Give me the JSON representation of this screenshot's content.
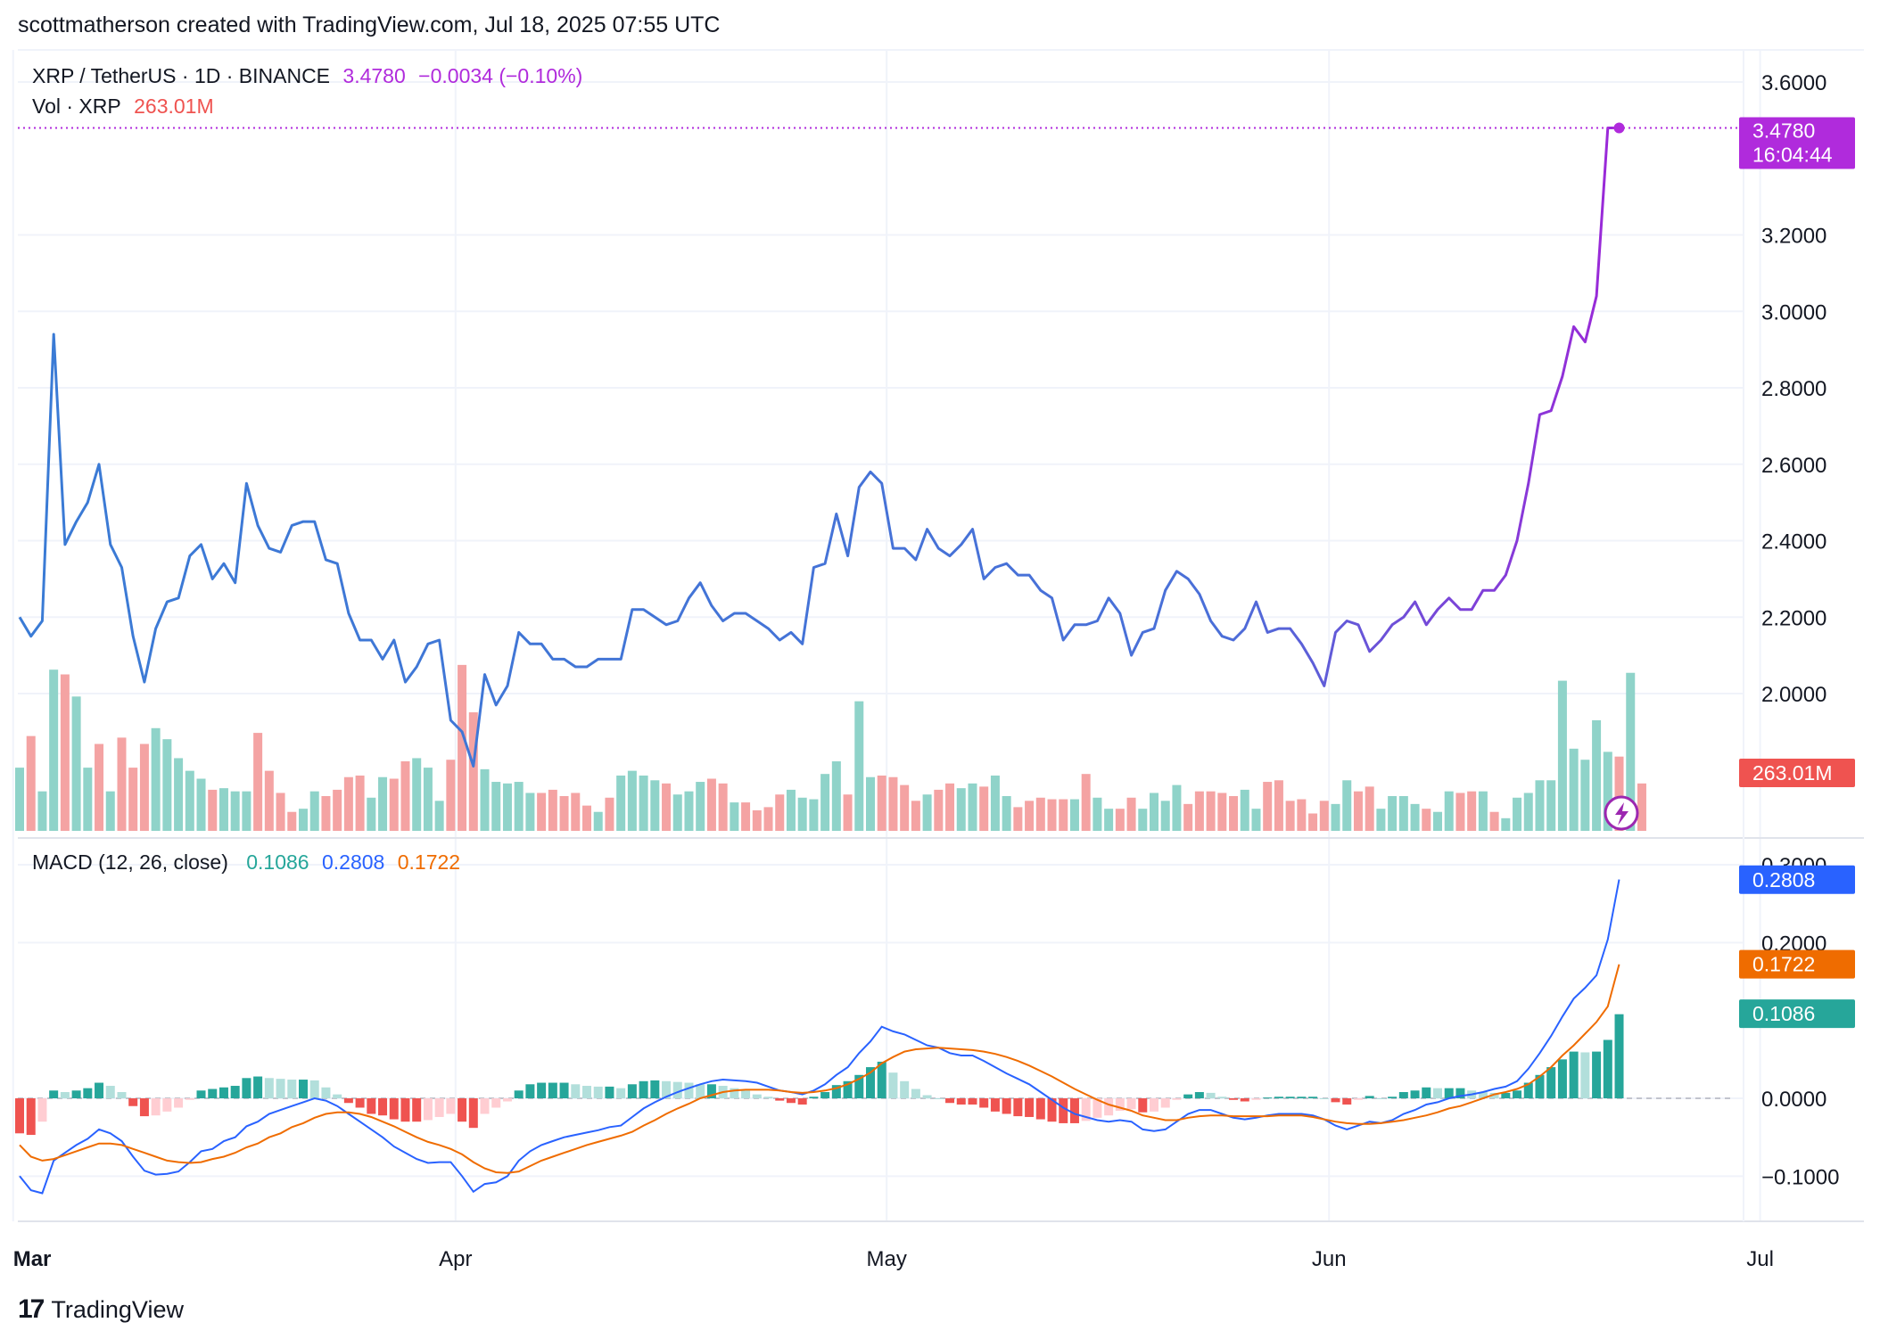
{
  "header": {
    "attribution": "scottmatherson created with TradingView.com, Jul 18, 2025 07:55 UTC"
  },
  "legend": {
    "symbol": "XRP / TetherUS · 1D · BINANCE",
    "last": "3.4780",
    "change": "−0.0034 (−0.10%)",
    "vol_label": "Vol · XRP",
    "vol_value": "263.01M",
    "macd_label": "MACD (12, 26, close)",
    "macd_hist": "0.1086",
    "macd_line": "0.2808",
    "macd_signal": "0.1722"
  },
  "price_tag": {
    "price": "3.4780",
    "countdown": "16:04:44"
  },
  "volume_tag": "263.01M",
  "macd_tags": {
    "macd": "0.2808",
    "signal": "0.1722",
    "hist": "0.1086"
  },
  "footer": {
    "brand": "TradingView"
  },
  "colors": {
    "price_line": "#3a7bd5",
    "price_line_recent": "#9c27d8",
    "last_price": "#b02bdc",
    "up_volume": "#8fd3c9",
    "down_volume": "#f4a3a3",
    "macd_line": "#2962ff",
    "signal_line": "#ef6c00",
    "hist_up_strong": "#26a69a",
    "hist_up_weak": "#b2dfdb",
    "hist_down_strong": "#ef5350",
    "hist_down_weak": "#ffcdd2"
  },
  "chart_data": [
    {
      "type": "line",
      "title": "XRP / TetherUS · 1D · BINANCE",
      "x_tick_labels": [
        "Mar",
        "Apr",
        "May",
        "Jun",
        "Jul"
      ],
      "y_tick_labels": [
        "3.6000",
        "3.2000",
        "3.0000",
        "2.8000",
        "2.6000",
        "2.4000",
        "2.2000",
        "2.0000"
      ],
      "ylim": [
        1.65,
        3.7
      ],
      "grid": true,
      "series": [
        {
          "name": "XRP / TetherUS",
          "values": [
            2.2,
            2.15,
            2.19,
            2.94,
            2.39,
            2.45,
            2.5,
            2.6,
            2.39,
            2.33,
            2.15,
            2.03,
            2.17,
            2.24,
            2.25,
            2.36,
            2.39,
            2.3,
            2.34,
            2.29,
            2.55,
            2.44,
            2.38,
            2.37,
            2.44,
            2.45,
            2.45,
            2.35,
            2.34,
            2.21,
            2.14,
            2.14,
            2.09,
            2.14,
            2.03,
            2.07,
            2.13,
            2.14,
            1.93,
            1.9,
            1.81,
            2.05,
            1.97,
            2.02,
            2.16,
            2.13,
            2.13,
            2.09,
            2.09,
            2.07,
            2.07,
            2.09,
            2.09,
            2.09,
            2.22,
            2.22,
            2.2,
            2.18,
            2.19,
            2.25,
            2.29,
            2.23,
            2.19,
            2.21,
            2.21,
            2.19,
            2.17,
            2.14,
            2.16,
            2.13,
            2.33,
            2.34,
            2.47,
            2.36,
            2.54,
            2.58,
            2.55,
            2.38,
            2.38,
            2.35,
            2.43,
            2.38,
            2.36,
            2.39,
            2.43,
            2.3,
            2.33,
            2.34,
            2.31,
            2.31,
            2.27,
            2.25,
            2.14,
            2.18,
            2.18,
            2.19,
            2.25,
            2.21,
            2.1,
            2.16,
            2.17,
            2.27,
            2.32,
            2.3,
            2.26,
            2.19,
            2.15,
            2.14,
            2.17,
            2.24,
            2.16,
            2.17,
            2.17,
            2.13,
            2.08,
            2.02,
            2.16,
            2.19,
            2.18,
            2.11,
            2.14,
            2.18,
            2.2,
            2.24,
            2.18,
            2.22,
            2.25,
            2.22,
            2.22,
            2.27,
            2.27,
            2.31,
            2.4,
            2.55,
            2.73,
            2.74,
            2.83,
            2.96,
            2.92,
            3.04,
            3.48,
            3.48
          ]
        }
      ]
    },
    {
      "type": "bar",
      "title": "Vol · XRP",
      "series": [
        {
          "name": "Vol · XRP",
          "values": [
            400,
            600,
            250,
            1020,
            990,
            850,
            400,
            550,
            250,
            590,
            400,
            550,
            650,
            580,
            460,
            380,
            330,
            260,
            270,
            250,
            250,
            620,
            380,
            240,
            120,
            140,
            250,
            220,
            260,
            340,
            350,
            210,
            340,
            330,
            440,
            460,
            400,
            190,
            450,
            1050,
            750,
            390,
            310,
            300,
            310,
            240,
            240,
            260,
            220,
            240,
            160,
            120,
            210,
            350,
            380,
            350,
            320,
            300,
            230,
            250,
            310,
            330,
            300,
            180,
            180,
            130,
            150,
            230,
            260,
            210,
            200,
            360,
            440,
            230,
            820,
            340,
            350,
            340,
            290,
            190,
            230,
            260,
            300,
            270,
            300,
            280,
            350,
            220,
            150,
            190,
            210,
            200,
            200,
            200,
            360,
            210,
            140,
            140,
            210,
            140,
            240,
            190,
            290,
            170,
            250,
            250,
            240,
            220,
            260,
            140,
            310,
            320,
            190,
            200,
            110,
            190,
            170,
            320,
            250,
            280,
            140,
            220,
            220,
            170,
            140,
            120,
            250,
            240,
            250,
            250,
            120,
            80,
            210,
            240,
            320,
            320,
            950,
            520,
            450,
            700,
            500,
            470,
            1000,
            300
          ],
          "up": [
            1,
            0,
            1,
            1,
            0,
            1,
            1,
            0,
            1,
            0,
            0,
            0,
            1,
            1,
            1,
            1,
            1,
            0,
            1,
            1,
            1,
            0,
            0,
            0,
            0,
            1,
            1,
            0,
            0,
            0,
            0,
            1,
            1,
            0,
            0,
            1,
            1,
            1,
            0,
            0,
            0,
            1,
            1,
            1,
            1,
            1,
            0,
            0,
            0,
            0,
            0,
            1,
            0,
            1,
            1,
            1,
            1,
            0,
            1,
            1,
            1,
            0,
            0,
            1,
            0,
            0,
            0,
            0,
            1,
            1,
            1,
            1,
            1,
            0,
            1,
            1,
            0,
            0,
            0,
            0,
            1,
            0,
            0,
            1,
            1,
            0,
            1,
            1,
            0,
            0,
            0,
            0,
            0,
            1,
            0,
            1,
            1,
            0,
            0,
            1,
            1,
            1,
            1,
            0,
            0,
            0,
            0,
            0,
            1,
            1,
            0,
            0,
            0,
            0,
            0,
            0,
            1,
            1,
            0,
            0,
            1,
            1,
            1,
            1,
            0,
            1,
            1,
            0,
            0,
            1,
            0,
            1,
            1,
            1,
            1,
            1,
            1,
            1,
            1,
            1,
            1,
            0,
            1,
            0
          ]
        }
      ]
    },
    {
      "type": "line",
      "title": "MACD (12, 26, close)",
      "y_tick_labels": [
        "0.3000",
        "0.2000",
        "0.0000",
        "−0.1000"
      ],
      "ylim": [
        -0.155,
        0.31
      ],
      "series": [
        {
          "name": "MACD",
          "values": [
            -0.1,
            -0.118,
            -0.122,
            -0.08,
            -0.07,
            -0.06,
            -0.052,
            -0.04,
            -0.045,
            -0.055,
            -0.075,
            -0.093,
            -0.098,
            -0.097,
            -0.094,
            -0.082,
            -0.068,
            -0.065,
            -0.055,
            -0.05,
            -0.036,
            -0.03,
            -0.02,
            -0.015,
            -0.01,
            -0.005,
            0.0,
            -0.003,
            -0.01,
            -0.02,
            -0.03,
            -0.04,
            -0.05,
            -0.062,
            -0.07,
            -0.078,
            -0.083,
            -0.082,
            -0.082,
            -0.1,
            -0.12,
            -0.11,
            -0.108,
            -0.1,
            -0.08,
            -0.068,
            -0.06,
            -0.055,
            -0.05,
            -0.047,
            -0.044,
            -0.041,
            -0.037,
            -0.035,
            -0.024,
            -0.013,
            -0.005,
            0.002,
            0.008,
            0.013,
            0.018,
            0.022,
            0.024,
            0.023,
            0.022,
            0.02,
            0.015,
            0.01,
            0.008,
            0.005,
            0.01,
            0.018,
            0.03,
            0.04,
            0.058,
            0.073,
            0.092,
            0.086,
            0.082,
            0.075,
            0.068,
            0.065,
            0.058,
            0.055,
            0.055,
            0.048,
            0.04,
            0.032,
            0.025,
            0.018,
            0.008,
            -0.002,
            -0.012,
            -0.02,
            -0.024,
            -0.028,
            -0.03,
            -0.028,
            -0.03,
            -0.04,
            -0.042,
            -0.04,
            -0.03,
            -0.02,
            -0.015,
            -0.015,
            -0.02,
            -0.025,
            -0.027,
            -0.025,
            -0.022,
            -0.02,
            -0.02,
            -0.02,
            -0.022,
            -0.027,
            -0.035,
            -0.04,
            -0.035,
            -0.03,
            -0.032,
            -0.028,
            -0.02,
            -0.015,
            -0.008,
            -0.005,
            0.0,
            0.003,
            0.005,
            0.008,
            0.012,
            0.015,
            0.022,
            0.038,
            0.058,
            0.08,
            0.105,
            0.128,
            0.142,
            0.158,
            0.204,
            0.281
          ]
        },
        {
          "name": "Signal",
          "values": [
            -0.06,
            -0.075,
            -0.08,
            -0.078,
            -0.073,
            -0.068,
            -0.063,
            -0.058,
            -0.058,
            -0.06,
            -0.065,
            -0.07,
            -0.075,
            -0.08,
            -0.082,
            -0.083,
            -0.082,
            -0.078,
            -0.075,
            -0.07,
            -0.063,
            -0.058,
            -0.05,
            -0.045,
            -0.037,
            -0.032,
            -0.025,
            -0.02,
            -0.018,
            -0.018,
            -0.02,
            -0.024,
            -0.03,
            -0.036,
            -0.043,
            -0.05,
            -0.056,
            -0.06,
            -0.065,
            -0.072,
            -0.082,
            -0.09,
            -0.095,
            -0.096,
            -0.094,
            -0.087,
            -0.08,
            -0.075,
            -0.07,
            -0.065,
            -0.06,
            -0.056,
            -0.052,
            -0.048,
            -0.043,
            -0.035,
            -0.028,
            -0.02,
            -0.013,
            -0.007,
            0.0,
            0.004,
            0.008,
            0.01,
            0.011,
            0.011,
            0.011,
            0.01,
            0.008,
            0.007,
            0.008,
            0.01,
            0.013,
            0.018,
            0.025,
            0.033,
            0.045,
            0.053,
            0.06,
            0.063,
            0.064,
            0.065,
            0.064,
            0.063,
            0.062,
            0.06,
            0.057,
            0.053,
            0.048,
            0.042,
            0.035,
            0.028,
            0.02,
            0.012,
            0.005,
            -0.002,
            -0.008,
            -0.012,
            -0.016,
            -0.022,
            -0.025,
            -0.028,
            -0.028,
            -0.025,
            -0.023,
            -0.022,
            -0.022,
            -0.023,
            -0.023,
            -0.023,
            -0.023,
            -0.022,
            -0.022,
            -0.022,
            -0.024,
            -0.027,
            -0.03,
            -0.032,
            -0.033,
            -0.033,
            -0.032,
            -0.03,
            -0.028,
            -0.025,
            -0.022,
            -0.018,
            -0.013,
            -0.01,
            -0.005,
            0.0,
            0.005,
            0.008,
            0.012,
            0.018,
            0.028,
            0.04,
            0.055,
            0.068,
            0.083,
            0.098,
            0.118,
            0.172
          ]
        },
        {
          "name": "Histogram",
          "values": [
            -0.045,
            -0.047,
            -0.03,
            0.01,
            0.008,
            0.01,
            0.013,
            0.02,
            0.016,
            0.008,
            -0.01,
            -0.023,
            -0.022,
            -0.017,
            -0.012,
            -0.002,
            0.01,
            0.012,
            0.014,
            0.016,
            0.026,
            0.028,
            0.026,
            0.025,
            0.024,
            0.024,
            0.023,
            0.014,
            0.005,
            -0.006,
            -0.012,
            -0.02,
            -0.022,
            -0.027,
            -0.03,
            -0.03,
            -0.028,
            -0.024,
            -0.02,
            -0.03,
            -0.038,
            -0.02,
            -0.012,
            -0.004,
            0.01,
            0.018,
            0.02,
            0.02,
            0.02,
            0.018,
            0.016,
            0.015,
            0.015,
            0.013,
            0.018,
            0.022,
            0.023,
            0.022,
            0.021,
            0.02,
            0.018,
            0.018,
            0.016,
            0.013,
            0.01,
            0.005,
            0.002,
            -0.003,
            -0.006,
            -0.008,
            0.002,
            0.008,
            0.017,
            0.022,
            0.03,
            0.04,
            0.047,
            0.033,
            0.022,
            0.012,
            0.004,
            0.0,
            -0.006,
            -0.008,
            -0.008,
            -0.012,
            -0.017,
            -0.02,
            -0.023,
            -0.024,
            -0.027,
            -0.03,
            -0.032,
            -0.032,
            -0.029,
            -0.025,
            -0.022,
            -0.016,
            -0.014,
            -0.018,
            -0.017,
            -0.012,
            -0.002,
            0.005,
            0.008,
            0.007,
            0.002,
            -0.002,
            -0.004,
            -0.002,
            0.001,
            0.002,
            0.002,
            0.002,
            0.002,
            0.0,
            -0.005,
            -0.008,
            -0.002,
            0.003,
            0.0,
            0.002,
            0.008,
            0.01,
            0.014,
            0.013,
            0.013,
            0.013,
            0.01,
            0.008,
            0.007,
            0.007,
            0.01,
            0.02,
            0.03,
            0.04,
            0.05,
            0.06,
            0.059,
            0.06,
            0.075,
            0.108
          ]
        }
      ]
    }
  ]
}
